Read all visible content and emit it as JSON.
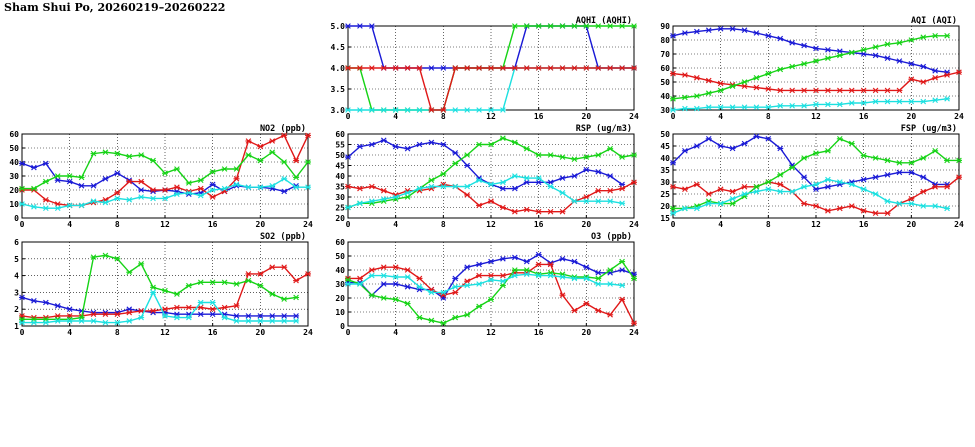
{
  "page": {
    "title": "Sham Shui Po, 20260219–20260222"
  },
  "series_colors": {
    "blue": "#1a1ad6",
    "red": "#e01818",
    "green": "#16d316",
    "cyan": "#1ce0e0"
  },
  "chart_data": [
    {
      "id": "no2",
      "type": "line",
      "title": "NO2 (ppb)",
      "xlim": [
        0,
        24
      ],
      "ylim": [
        0,
        60
      ],
      "xticks": [
        "0",
        "4",
        "8",
        "12",
        "16",
        "20",
        "24"
      ],
      "yticks": [
        "0",
        "10",
        "20",
        "30",
        "40",
        "50",
        "60"
      ],
      "grid": true,
      "series": [
        {
          "color": "blue",
          "values": [
            39,
            36,
            39,
            27,
            26,
            23,
            23,
            28,
            32,
            27,
            20,
            19,
            20,
            19,
            17,
            18,
            24,
            19,
            23,
            22,
            22,
            21,
            19,
            23
          ]
        },
        {
          "color": "red",
          "values": [
            20,
            20,
            13,
            10,
            9,
            9,
            11,
            13,
            18,
            26,
            26,
            20,
            20,
            22,
            19,
            21,
            15,
            19,
            28,
            55,
            51,
            55,
            59,
            41,
            59
          ]
        },
        {
          "color": "green",
          "values": [
            21,
            21,
            26,
            30,
            30,
            29,
            46,
            47,
            46,
            44,
            45,
            41,
            32,
            35,
            25,
            27,
            33,
            35,
            35,
            45,
            41,
            47,
            40,
            29,
            40
          ]
        },
        {
          "color": "cyan",
          "values": [
            10,
            8,
            7,
            7,
            9,
            9,
            12,
            11,
            14,
            13,
            15,
            14,
            14,
            17,
            18,
            16,
            20,
            21,
            24,
            22,
            22,
            23,
            28,
            22,
            22
          ]
        }
      ]
    },
    {
      "id": "so2",
      "type": "line",
      "title": "SO2 (ppb)",
      "xlim": [
        0,
        24
      ],
      "ylim": [
        1,
        6
      ],
      "xticks": [
        "0",
        "4",
        "8",
        "12",
        "16",
        "20",
        "24"
      ],
      "yticks": [
        "1",
        "2",
        "3",
        "4",
        "5",
        "6"
      ],
      "grid": true,
      "series": [
        {
          "color": "blue",
          "values": [
            2.7,
            2.5,
            2.4,
            2.2,
            2.0,
            1.9,
            1.8,
            1.8,
            1.8,
            2.0,
            1.9,
            1.8,
            1.8,
            1.7,
            1.7,
            1.7,
            1.7,
            1.7,
            1.6,
            1.6,
            1.6,
            1.6,
            1.6,
            1.6
          ]
        },
        {
          "color": "red",
          "values": [
            1.6,
            1.5,
            1.5,
            1.6,
            1.6,
            1.6,
            1.7,
            1.7,
            1.7,
            1.8,
            1.9,
            1.9,
            2.0,
            2.1,
            2.1,
            2.1,
            2.0,
            2.1,
            2.2,
            4.1,
            4.1,
            4.5,
            4.5,
            3.7,
            4.1
          ]
        },
        {
          "color": "green",
          "values": [
            1.4,
            1.4,
            1.4,
            1.4,
            1.4,
            1.5,
            5.1,
            5.2,
            5.0,
            4.2,
            4.7,
            3.3,
            3.1,
            2.9,
            3.4,
            3.6,
            3.6,
            3.6,
            3.5,
            3.7,
            3.4,
            2.9,
            2.6,
            2.7
          ]
        },
        {
          "color": "cyan",
          "values": [
            1.2,
            1.2,
            1.2,
            1.3,
            1.3,
            1.3,
            1.3,
            1.2,
            1.2,
            1.3,
            1.5,
            3.0,
            1.6,
            1.5,
            1.5,
            2.4,
            2.4,
            1.5,
            1.3,
            1.3,
            1.3,
            1.3,
            1.3,
            1.3
          ]
        }
      ]
    },
    {
      "id": "aqhi",
      "type": "line",
      "title": "AQHI (AQHI)",
      "xlim": [
        0,
        24
      ],
      "ylim": [
        3,
        5
      ],
      "xticks": [
        "0",
        "4",
        "8",
        "12",
        "16",
        "20",
        "24"
      ],
      "yticks": [
        "3.0",
        "3.5",
        "4.0",
        "4.5",
        "5.0"
      ],
      "grid": true,
      "series": [
        {
          "color": "blue",
          "values": [
            5,
            5,
            5,
            4,
            4,
            4,
            4,
            4,
            4,
            4,
            4,
            4,
            4,
            4,
            4,
            5,
            5,
            5,
            5,
            5,
            5,
            4,
            4,
            4,
            4
          ]
        },
        {
          "color": "green",
          "values": [
            4,
            4,
            3,
            3,
            3,
            3,
            3,
            3,
            3,
            4,
            4,
            4,
            4,
            4,
            5,
            5,
            5,
            5,
            5,
            5,
            5,
            5,
            5,
            5,
            5
          ]
        },
        {
          "color": "cyan",
          "values": [
            3,
            3,
            3,
            3,
            3,
            3,
            3,
            3,
            3,
            3,
            3,
            3,
            3,
            3,
            4,
            4,
            4,
            4,
            4,
            4,
            4,
            4,
            4,
            4,
            4
          ]
        },
        {
          "color": "red",
          "values": [
            4,
            4,
            4,
            4,
            4,
            4,
            4,
            3,
            3,
            4,
            4,
            4,
            4,
            4,
            4,
            4,
            4,
            4,
            4,
            4,
            4,
            4,
            4,
            4,
            4
          ]
        }
      ]
    },
    {
      "id": "rsp",
      "type": "line",
      "title": "RSP (ug/m3)",
      "xlim": [
        0,
        24
      ],
      "ylim": [
        20,
        60
      ],
      "xticks": [
        "0",
        "4",
        "8",
        "12",
        "16",
        "20",
        "24"
      ],
      "yticks": [
        "20",
        "25",
        "30",
        "35",
        "40",
        "45",
        "50",
        "55",
        "60"
      ],
      "grid": true,
      "series": [
        {
          "color": "blue",
          "values": [
            49,
            54,
            55,
            57,
            54,
            53,
            55,
            56,
            55,
            51,
            45,
            39,
            36,
            34,
            34,
            37,
            37,
            37,
            39,
            40,
            43,
            42,
            40,
            36
          ]
        },
        {
          "color": "red",
          "values": [
            35,
            34,
            35,
            33,
            31,
            33,
            33,
            34,
            36,
            35,
            31,
            26,
            28,
            25,
            23,
            24,
            23,
            23,
            23,
            28,
            30,
            33,
            33,
            34,
            37
          ]
        },
        {
          "color": "green",
          "values": [
            25,
            27,
            27,
            28,
            29,
            30,
            34,
            38,
            41,
            46,
            50,
            55,
            55,
            58,
            56,
            53,
            50,
            50,
            49,
            48,
            49,
            50,
            53,
            49,
            50
          ]
        },
        {
          "color": "cyan",
          "values": [
            25,
            27,
            28,
            29,
            30,
            32,
            34,
            35,
            35,
            35,
            35,
            38,
            36,
            37,
            40,
            39,
            39,
            35,
            32,
            28,
            28,
            28,
            28,
            27
          ]
        }
      ]
    },
    {
      "id": "o3",
      "type": "line",
      "title": "O3 (ppb)",
      "xlim": [
        0,
        24
      ],
      "ylim": [
        0,
        60
      ],
      "xticks": [
        "0",
        "4",
        "8",
        "12",
        "16",
        "20",
        "24"
      ],
      "yticks": [
        "0",
        "10",
        "20",
        "30",
        "40",
        "50",
        "60"
      ],
      "grid": true,
      "series": [
        {
          "color": "blue",
          "values": [
            31,
            31,
            22,
            30,
            30,
            28,
            26,
            26,
            20,
            34,
            42,
            44,
            46,
            48,
            49,
            46,
            51,
            45,
            48,
            46,
            42,
            38,
            38,
            40,
            37
          ]
        },
        {
          "color": "red",
          "values": [
            34,
            34,
            40,
            42,
            42,
            40,
            34,
            26,
            22,
            24,
            32,
            36,
            36,
            36,
            38,
            38,
            44,
            44,
            22,
            11,
            16,
            11,
            8,
            19,
            2
          ]
        },
        {
          "color": "green",
          "values": [
            33,
            30,
            22,
            20,
            19,
            16,
            6,
            4,
            2,
            6,
            8,
            14,
            19,
            29,
            40,
            40,
            37,
            38,
            37,
            35,
            35,
            34,
            40,
            46,
            34
          ]
        },
        {
          "color": "cyan",
          "values": [
            30,
            30,
            36,
            36,
            35,
            35,
            28,
            24,
            24,
            28,
            29,
            30,
            33,
            32,
            36,
            37,
            36,
            36,
            35,
            34,
            34,
            30,
            30,
            29
          ]
        }
      ]
    },
    {
      "id": "aqi",
      "type": "line",
      "title": "AQI (AQI)",
      "xlim": [
        0,
        24
      ],
      "ylim": [
        30,
        90
      ],
      "xticks": [
        "0",
        "4",
        "8",
        "12",
        "16",
        "20",
        "24"
      ],
      "yticks": [
        "30",
        "40",
        "50",
        "60",
        "70",
        "80",
        "90"
      ],
      "grid": true,
      "series": [
        {
          "color": "blue",
          "values": [
            83,
            85,
            86,
            87,
            88,
            88,
            87,
            85,
            83,
            81,
            78,
            76,
            74,
            73,
            72,
            71,
            70,
            69,
            67,
            65,
            63,
            61,
            58,
            57
          ]
        },
        {
          "color": "red",
          "values": [
            56,
            55,
            53,
            51,
            49,
            48,
            47,
            46,
            45,
            44,
            44,
            44,
            44,
            44,
            44,
            44,
            44,
            44,
            44,
            44,
            52,
            50,
            53,
            55,
            57
          ]
        },
        {
          "color": "green",
          "values": [
            38,
            39,
            40,
            42,
            44,
            47,
            50,
            53,
            56,
            59,
            61,
            63,
            65,
            67,
            69,
            71,
            73,
            75,
            77,
            78,
            80,
            82,
            83,
            83
          ]
        },
        {
          "color": "cyan",
          "values": [
            30,
            31,
            31,
            32,
            32,
            32,
            32,
            32,
            32,
            33,
            33,
            33,
            34,
            34,
            34,
            35,
            35,
            36,
            36,
            36,
            36,
            36,
            37,
            38
          ]
        }
      ]
    },
    {
      "id": "fsp",
      "type": "line",
      "title": "FSP (ug/m3)",
      "xlim": [
        0,
        24
      ],
      "ylim": [
        15,
        50
      ],
      "xticks": [
        "0",
        "4",
        "8",
        "12",
        "16",
        "20",
        "24"
      ],
      "yticks": [
        "15",
        "20",
        "25",
        "30",
        "35",
        "40",
        "45",
        "50"
      ],
      "grid": true,
      "series": [
        {
          "color": "blue",
          "values": [
            38,
            43,
            45,
            48,
            45,
            44,
            46,
            49,
            48,
            44,
            37,
            32,
            27,
            28,
            29,
            30,
            31,
            32,
            33,
            34,
            34,
            32,
            29,
            29
          ]
        },
        {
          "color": "red",
          "values": [
            28,
            27,
            29,
            25,
            27,
            26,
            28,
            28,
            30,
            29,
            26,
            21,
            20,
            18,
            19,
            20,
            18,
            17,
            17,
            21,
            23,
            26,
            28,
            28,
            32
          ]
        },
        {
          "color": "green",
          "values": [
            19,
            19,
            20,
            22,
            21,
            21,
            24,
            28,
            30,
            33,
            36,
            40,
            42,
            43,
            48,
            46,
            41,
            40,
            39,
            38,
            38,
            40,
            43,
            39,
            39
          ]
        },
        {
          "color": "cyan",
          "values": [
            17,
            19,
            19,
            21,
            21,
            23,
            25,
            26,
            27,
            26,
            26,
            28,
            29,
            31,
            30,
            29,
            27,
            25,
            22,
            21,
            21,
            20,
            20,
            19
          ]
        }
      ]
    }
  ]
}
